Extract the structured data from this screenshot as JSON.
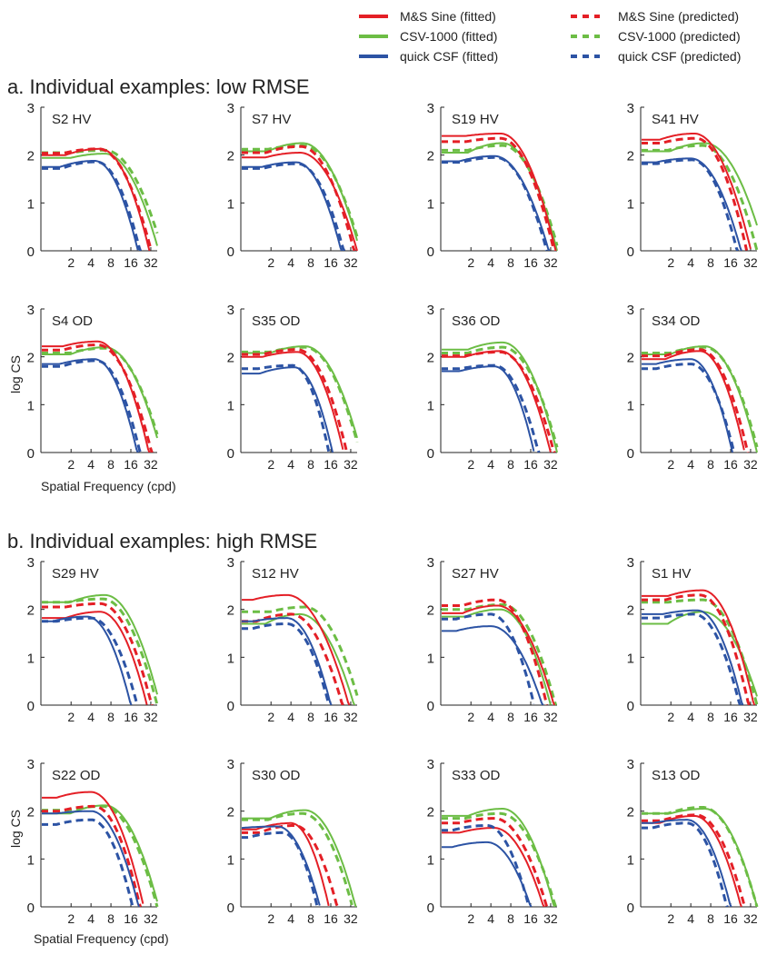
{
  "legend": {
    "items": [
      {
        "label": "M&S Sine (fitted)",
        "color": "#e41f26",
        "style": "solid"
      },
      {
        "label": "CSV-1000 (fitted)",
        "color": "#6cbd45",
        "style": "solid"
      },
      {
        "label": "quick CSF (fitted)",
        "color": "#2c53a4",
        "style": "solid"
      },
      {
        "label": "M&S Sine (predicted)",
        "color": "#e41f26",
        "style": "dashed"
      },
      {
        "label": "CSV-1000 (predicted)",
        "color": "#6cbd45",
        "style": "dashed"
      },
      {
        "label": "quick CSF (predicted)",
        "color": "#2c53a4",
        "style": "dashed"
      }
    ]
  },
  "sections": [
    {
      "title": "a.   Individual examples: low RMSE"
    },
    {
      "title": "b.   Individual examples: high RMSE"
    }
  ],
  "axes": {
    "ylabel": "log CS",
    "xlabel": "Spatial Frequency (cpd)",
    "yticks": [
      "0",
      "1",
      "2",
      "3"
    ],
    "xticks": [
      "2",
      "4",
      "8",
      "16",
      "32"
    ],
    "ylim": [
      0,
      3
    ]
  },
  "colors": {
    "M&S Sine": "#e41f26",
    "CSV-1000": "#6cbd45",
    "quick CSF": "#2c53a4"
  },
  "chart_data": {
    "type": "line",
    "note_units": "x = spatial frequency (cpd, log axis), y = log CS",
    "panels": [
      {
        "label": "S2 HV",
        "series": [
          {
            "name": "M&S Sine",
            "fitted": [
              2.0,
              2.13,
              5.5,
              30.5
            ],
            "predicted": [
              2.04,
              2.13,
              5.2,
              32.5
            ]
          },
          {
            "name": "CSV-1000",
            "fitted": [
              1.94,
              2.03,
              6.5,
              42.0
            ],
            "predicted": [
              2.05,
              2.1,
              6.5,
              48.0
            ]
          },
          {
            "name": "quick CSF",
            "fitted": [
              1.75,
              1.88,
              4.5,
              20.5
            ],
            "predicted": [
              1.72,
              1.86,
              4.8,
              22.0
            ]
          }
        ]
      },
      {
        "label": "S7 HV",
        "series": [
          {
            "name": "M&S Sine",
            "fitted": [
              1.95,
              2.05,
              5.5,
              40.0
            ],
            "predicted": [
              2.05,
              2.18,
              5.6,
              36.0
            ]
          },
          {
            "name": "CSV-1000",
            "fitted": [
              2.08,
              2.25,
              6.0,
              44.0
            ],
            "predicted": [
              2.12,
              2.2,
              6.0,
              46.0
            ]
          },
          {
            "name": "quick CSF",
            "fitted": [
              1.75,
              1.85,
              4.8,
              23.0
            ],
            "predicted": [
              1.72,
              1.82,
              5.0,
              25.0
            ]
          }
        ]
      },
      {
        "label": "S19 HV",
        "series": [
          {
            "name": "M&S Sine",
            "fitted": [
              2.4,
              2.45,
              5.6,
              38.0
            ],
            "predicted": [
              2.28,
              2.35,
              5.6,
              36.0
            ]
          },
          {
            "name": "CSV-1000",
            "fitted": [
              2.05,
              2.25,
              6.0,
              40.0
            ],
            "predicted": [
              2.1,
              2.2,
              6.0,
              42.0
            ]
          },
          {
            "name": "quick CSF",
            "fitted": [
              1.87,
              1.98,
              4.5,
              30.0
            ],
            "predicted": [
              1.85,
              1.95,
              4.8,
              28.0
            ]
          }
        ]
      },
      {
        "label": "S41 HV",
        "series": [
          {
            "name": "M&S Sine",
            "fitted": [
              2.32,
              2.45,
              4.5,
              32.5
            ],
            "predicted": [
              2.25,
              2.35,
              4.8,
              28.0
            ]
          },
          {
            "name": "CSV-1000",
            "fitted": [
              2.08,
              2.25,
              6.5,
              52.0
            ],
            "predicted": [
              2.1,
              2.2,
              6.0,
              40.0
            ]
          },
          {
            "name": "quick CSF",
            "fitted": [
              1.85,
              1.93,
              4.0,
              23.0
            ],
            "predicted": [
              1.82,
              1.9,
              4.2,
              20.0
            ]
          }
        ]
      },
      {
        "label": "S4 OD",
        "series": [
          {
            "name": "M&S Sine",
            "fitted": [
              2.22,
              2.32,
              5.0,
              30.0
            ],
            "predicted": [
              2.14,
              2.25,
              5.0,
              33.0
            ]
          },
          {
            "name": "CSV-1000",
            "fitted": [
              2.05,
              2.2,
              6.5,
              46.0
            ],
            "predicted": [
              2.08,
              2.18,
              6.5,
              48.0
            ]
          },
          {
            "name": "quick CSF",
            "fitted": [
              1.85,
              1.95,
              4.5,
              20.0
            ],
            "predicted": [
              1.8,
              1.92,
              4.8,
              22.0
            ]
          }
        ]
      },
      {
        "label": "S35 OD",
        "series": [
          {
            "name": "M&S Sine",
            "fitted": [
              2.0,
              2.1,
              5.0,
              25.0
            ],
            "predicted": [
              2.05,
              2.15,
              5.0,
              28.0
            ]
          },
          {
            "name": "CSV-1000",
            "fitted": [
              2.08,
              2.22,
              6.5,
              46.0
            ],
            "predicted": [
              2.1,
              2.2,
              6.5,
              44.0
            ]
          },
          {
            "name": "quick CSF",
            "fitted": [
              1.65,
              1.78,
              4.5,
              17.0
            ],
            "predicted": [
              1.75,
              1.82,
              4.2,
              15.0
            ]
          }
        ]
      },
      {
        "label": "S36 OD",
        "series": [
          {
            "name": "M&S Sine",
            "fitted": [
              2.0,
              2.12,
              5.5,
              32.0
            ],
            "predicted": [
              2.02,
              2.1,
              5.5,
              36.0
            ]
          },
          {
            "name": "CSV-1000",
            "fitted": [
              2.15,
              2.3,
              6.0,
              40.0
            ],
            "predicted": [
              2.08,
              2.2,
              6.0,
              42.0
            ]
          },
          {
            "name": "quick CSF",
            "fitted": [
              1.7,
              1.8,
              4.5,
              18.0
            ],
            "predicted": [
              1.75,
              1.82,
              4.5,
              21.0
            ]
          }
        ]
      },
      {
        "label": "S34 OD",
        "series": [
          {
            "name": "M&S Sine",
            "fitted": [
              1.95,
              2.12,
              5.5,
              26.0
            ],
            "predicted": [
              2.02,
              2.15,
              5.5,
              29.0
            ]
          },
          {
            "name": "CSV-1000",
            "fitted": [
              2.05,
              2.22,
              6.5,
              40.0
            ],
            "predicted": [
              2.08,
              2.2,
              6.5,
              42.0
            ]
          },
          {
            "name": "quick CSF",
            "fitted": [
              1.85,
              1.95,
              4.0,
              17.0
            ],
            "predicted": [
              1.75,
              1.85,
              4.0,
              18.0
            ]
          }
        ]
      },
      {
        "label": "S29 HV",
        "series": [
          {
            "name": "M&S Sine",
            "fitted": [
              1.82,
              1.95,
              5.5,
              28.0
            ],
            "predicted": [
              2.05,
              2.12,
              5.5,
              33.0
            ]
          },
          {
            "name": "CSV-1000",
            "fitted": [
              2.15,
              2.3,
              6.5,
              44.0
            ],
            "predicted": [
              2.15,
              2.22,
              6.0,
              40.0
            ]
          },
          {
            "name": "quick CSF",
            "fitted": [
              1.75,
              1.85,
              3.5,
              16.0
            ],
            "predicted": [
              1.75,
              1.82,
              4.0,
              20.0
            ]
          }
        ]
      },
      {
        "label": "S12 HV",
        "series": [
          {
            "name": "M&S Sine",
            "fitted": [
              2.2,
              2.3,
              3.5,
              30.0
            ],
            "predicted": [
              1.75,
              1.9,
              4.0,
              24.0
            ]
          },
          {
            "name": "CSV-1000",
            "fitted": [
              1.7,
              1.9,
              5.5,
              36.0
            ],
            "predicted": [
              1.95,
              2.05,
              6.5,
              44.0
            ]
          },
          {
            "name": "quick CSF",
            "fitted": [
              1.75,
              1.82,
              3.5,
              16.0
            ],
            "predicted": [
              1.6,
              1.7,
              3.5,
              15.0
            ]
          }
        ]
      },
      {
        "label": "S27 HV",
        "series": [
          {
            "name": "M&S Sine",
            "fitted": [
              1.92,
              2.08,
              5.0,
              36.0
            ],
            "predicted": [
              2.08,
              2.2,
              5.0,
              28.0
            ]
          },
          {
            "name": "CSV-1000",
            "fitted": [
              1.85,
              2.0,
              5.5,
              32.0
            ],
            "predicted": [
              2.0,
              2.1,
              6.0,
              38.0
            ]
          },
          {
            "name": "quick CSF",
            "fitted": [
              1.55,
              1.65,
              4.0,
              24.0
            ],
            "predicted": [
              1.8,
              1.9,
              4.0,
              18.0
            ]
          }
        ]
      },
      {
        "label": "S1 HV",
        "series": [
          {
            "name": "M&S Sine",
            "fitted": [
              2.28,
              2.4,
              6.0,
              36.0
            ],
            "predicted": [
              2.2,
              2.3,
              5.5,
              30.0
            ]
          },
          {
            "name": "CSV-1000",
            "fitted": [
              1.7,
              1.95,
              6.0,
              44.0
            ],
            "predicted": [
              2.15,
              2.2,
              6.0,
              40.0
            ]
          },
          {
            "name": "quick CSF",
            "fitted": [
              1.9,
              1.98,
              5.0,
              24.0
            ],
            "predicted": [
              1.82,
              1.9,
              4.5,
              22.0
            ]
          }
        ]
      },
      {
        "label": "S22 OD",
        "series": [
          {
            "name": "M&S Sine",
            "fitted": [
              2.28,
              2.4,
              4.0,
              25.0
            ],
            "predicted": [
              2.0,
              2.1,
              4.5,
              22.0
            ]
          },
          {
            "name": "CSV-1000",
            "fitted": [
              1.95,
              2.12,
              6.5,
              42.0
            ],
            "predicted": [
              2.02,
              2.1,
              6.0,
              40.0
            ]
          },
          {
            "name": "quick CSF",
            "fitted": [
              1.95,
              2.0,
              4.0,
              21.0
            ],
            "predicted": [
              1.72,
              1.82,
              4.0,
              17.0
            ]
          }
        ]
      },
      {
        "label": "S30 OD",
        "series": [
          {
            "name": "M&S Sine",
            "fitted": [
              1.62,
              1.75,
              4.0,
              15.0
            ],
            "predicted": [
              1.55,
              1.7,
              4.5,
              20.0
            ]
          },
          {
            "name": "CSV-1000",
            "fitted": [
              1.85,
              2.02,
              6.5,
              38.0
            ],
            "predicted": [
              1.82,
              1.95,
              6.0,
              34.0
            ]
          },
          {
            "name": "quick CSF",
            "fitted": [
              1.65,
              1.68,
              2.5,
              11.0
            ],
            "predicted": [
              1.45,
              1.55,
              3.0,
              10.0
            ]
          }
        ]
      },
      {
        "label": "S33 OD",
        "series": [
          {
            "name": "M&S Sine",
            "fitted": [
              1.55,
              1.65,
              4.5,
              25.0
            ],
            "predicted": [
              1.75,
              1.85,
              4.5,
              28.0
            ]
          },
          {
            "name": "CSV-1000",
            "fitted": [
              1.9,
              2.05,
              6.0,
              36.0
            ],
            "predicted": [
              1.85,
              1.95,
              5.5,
              38.0
            ]
          },
          {
            "name": "quick CSF",
            "fitted": [
              1.25,
              1.35,
              3.5,
              16.0
            ],
            "predicted": [
              1.6,
              1.7,
              3.5,
              15.0
            ]
          }
        ]
      },
      {
        "label": "S13 OD",
        "series": [
          {
            "name": "M&S Sine",
            "fitted": [
              1.75,
              1.9,
              4.5,
              23.0
            ],
            "predicted": [
              1.8,
              1.92,
              4.8,
              26.0
            ]
          },
          {
            "name": "CSV-1000",
            "fitted": [
              1.95,
              2.05,
              6.5,
              40.0
            ],
            "predicted": [
              1.95,
              2.08,
              6.0,
              40.0
            ]
          },
          {
            "name": "quick CSF",
            "fitted": [
              1.75,
              1.82,
              3.5,
              16.0
            ],
            "predicted": [
              1.65,
              1.75,
              3.5,
              14.0
            ]
          }
        ]
      }
    ]
  }
}
